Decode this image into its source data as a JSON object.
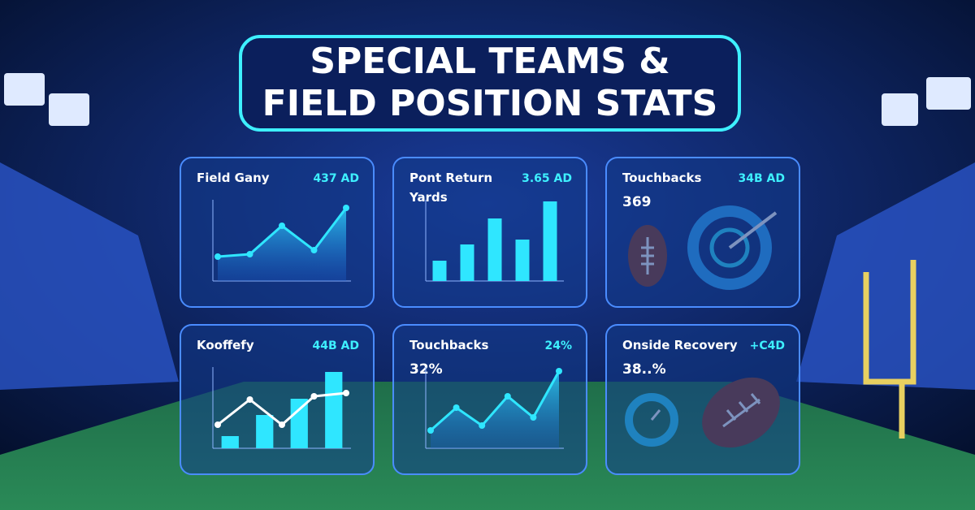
{
  "title_line1": "SPECIAL TEAMS &",
  "title_line2": "FIELD POSITION STATS",
  "panels": [
    {
      "title": "Field Gany",
      "stat": "437 AD",
      "chart": {
        "type": "area",
        "ylim": [
          0,
          100
        ],
        "values": [
          30,
          33,
          68,
          38,
          90
        ]
      }
    },
    {
      "title": "Pont Return",
      "title2": "Yards",
      "stat": "3.65 AD",
      "chart": {
        "type": "bar",
        "ylim": [
          0,
          100
        ],
        "values": [
          25,
          45,
          77,
          51,
          98
        ]
      }
    },
    {
      "title": "Touchbacks",
      "stat": "34B AD",
      "big": "369"
    },
    {
      "title": "Kooffefy",
      "stat": "44B AD",
      "chart": {
        "type": "combo",
        "ylim": [
          0,
          100
        ],
        "bars": [
          15,
          41,
          61,
          94
        ],
        "line": [
          29,
          60,
          29,
          64,
          68
        ]
      }
    },
    {
      "title": "Touchbacks",
      "stat": "24%",
      "big": "32%",
      "chart": {
        "type": "area",
        "ylim": [
          0,
          100
        ],
        "values": [
          22,
          50,
          28,
          64,
          38,
          95
        ]
      }
    },
    {
      "title": "Onside Recovery",
      "stat": "+C4D",
      "big": "38..%"
    }
  ]
}
